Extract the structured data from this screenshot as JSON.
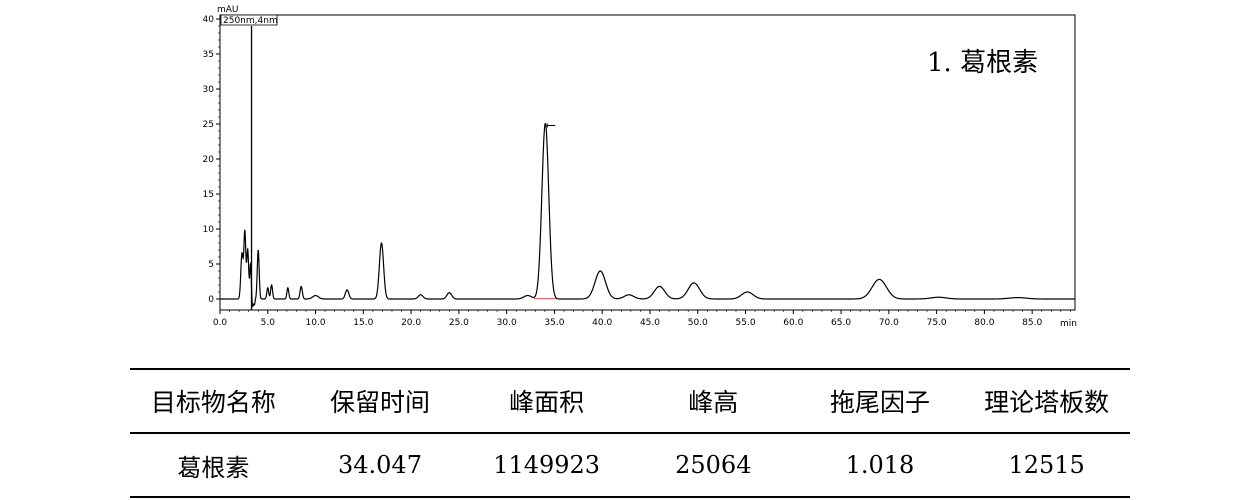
{
  "chart_data": {
    "type": "line",
    "y_unit_label": "mAU",
    "channel_label": "250nm,4nm",
    "x_unit_label": "min",
    "xlim": [
      0,
      90
    ],
    "ylim": [
      0,
      40
    ],
    "x_ticks": [
      0,
      5,
      10,
      15,
      20,
      25,
      30,
      35,
      40,
      45,
      50,
      55,
      60,
      65,
      70,
      75,
      80,
      85
    ],
    "x_tick_labels": [
      "0.0",
      "5.0",
      "10.0",
      "15.0",
      "20.0",
      "25.0",
      "30.0",
      "35.0",
      "40.0",
      "45.0",
      "50.0",
      "55.0",
      "60.0",
      "65.0",
      "70.0",
      "75.0",
      "80.0",
      "85.0"
    ],
    "y_ticks": [
      0,
      5,
      10,
      15,
      20,
      25,
      30,
      35,
      40
    ],
    "y_tick_labels": [
      "0",
      "5",
      "10",
      "15",
      "20",
      "25",
      "30",
      "35",
      "40"
    ],
    "peak_annotation": "1. 葛根素",
    "baseline": 0,
    "peaks": [
      {
        "rt": 2.3,
        "height": 6.5,
        "width": 0.12
      },
      {
        "rt": 2.6,
        "height": 9.5,
        "width": 0.1
      },
      {
        "rt": 2.9,
        "height": 7.0,
        "width": 0.1
      },
      {
        "rt": 3.2,
        "height": 5.0,
        "width": 0.08
      },
      {
        "rt": 4.0,
        "height": 7.0,
        "width": 0.1
      },
      {
        "rt": 5.0,
        "height": 1.6,
        "width": 0.1
      },
      {
        "rt": 5.4,
        "height": 2.0,
        "width": 0.1
      },
      {
        "rt": 7.1,
        "height": 1.6,
        "width": 0.1
      },
      {
        "rt": 8.5,
        "height": 1.8,
        "width": 0.12
      },
      {
        "rt": 10.0,
        "height": 0.5,
        "width": 0.3
      },
      {
        "rt": 13.3,
        "height": 1.3,
        "width": 0.18
      },
      {
        "rt": 16.9,
        "height": 8.0,
        "width": 0.22
      },
      {
        "rt": 21.0,
        "height": 0.6,
        "width": 0.25
      },
      {
        "rt": 24.0,
        "height": 0.9,
        "width": 0.25
      },
      {
        "rt": 32.2,
        "height": 0.5,
        "width": 0.4
      },
      {
        "rt": 34.047,
        "height": 25.064,
        "width": 0.36
      },
      {
        "rt": 39.8,
        "height": 4.0,
        "width": 0.55
      },
      {
        "rt": 42.8,
        "height": 0.6,
        "width": 0.5
      },
      {
        "rt": 46.0,
        "height": 1.8,
        "width": 0.55
      },
      {
        "rt": 49.6,
        "height": 2.3,
        "width": 0.6
      },
      {
        "rt": 55.2,
        "height": 1.0,
        "width": 0.6
      },
      {
        "rt": 69.0,
        "height": 2.8,
        "width": 0.75
      },
      {
        "rt": 75.2,
        "height": 0.25,
        "width": 0.8
      },
      {
        "rt": 83.5,
        "height": 0.2,
        "width": 0.9
      }
    ],
    "dips": [
      {
        "rt": 3.4,
        "depth": 1.2,
        "width": 0.08
      },
      {
        "rt": 3.6,
        "depth": 0.8,
        "width": 0.06
      }
    ]
  },
  "table": {
    "headers": [
      "目标物名称",
      "保留时间",
      "峰面积",
      "峰高",
      "拖尾因子",
      "理论塔板数"
    ],
    "rows": [
      [
        "葛根素",
        "34.047",
        "1149923",
        "25064",
        "1.018",
        "12515"
      ]
    ]
  }
}
